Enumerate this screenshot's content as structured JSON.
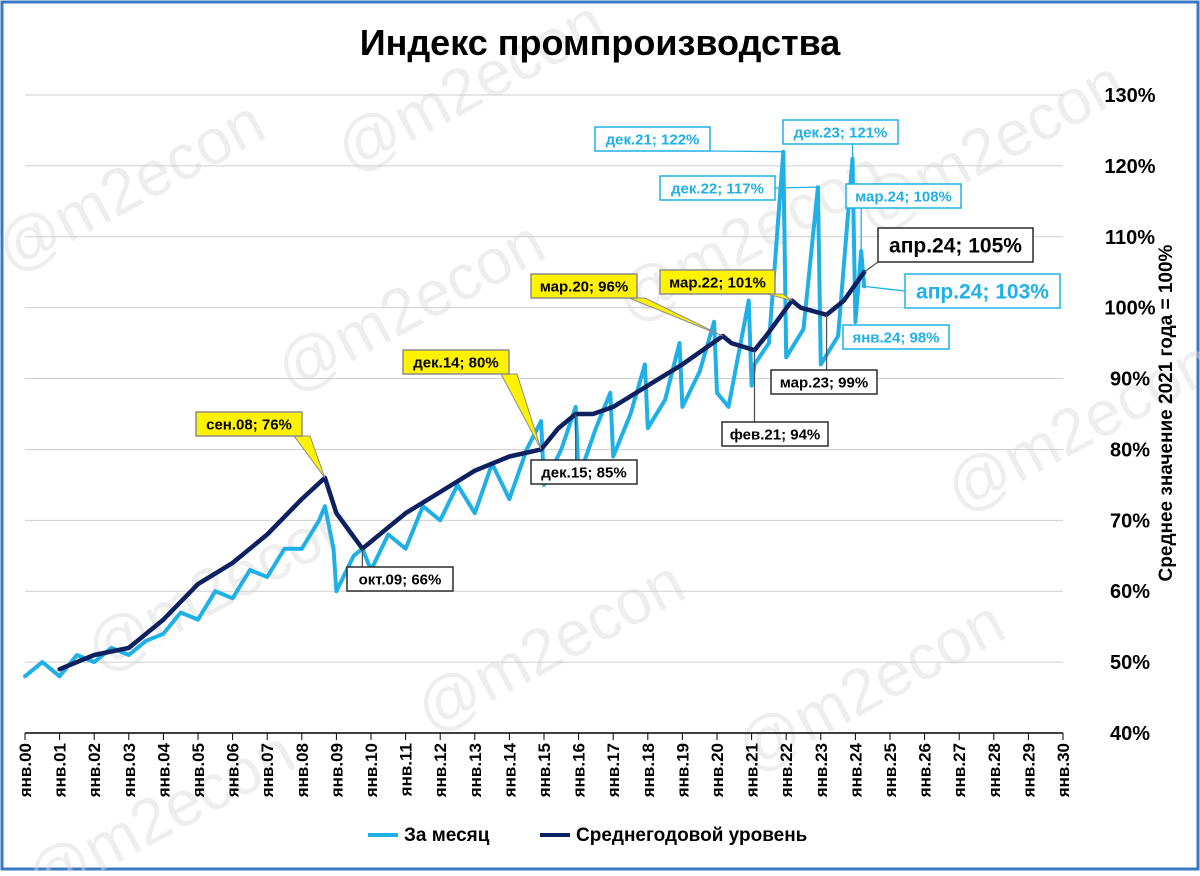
{
  "chart_data": {
    "type": "line",
    "title": "Индекс промпроизводства",
    "ylabel": "Среднее значение 2021 года = 100%",
    "y_axis_position": "right",
    "ylim": [
      40,
      130
    ],
    "y_ticks": [
      "40%",
      "50%",
      "60%",
      "70%",
      "80%",
      "90%",
      "100%",
      "110%",
      "120%",
      "130%"
    ],
    "x_range": [
      "2000-01",
      "2030-01"
    ],
    "x_tick_labels": [
      "янв.00",
      "янв.01",
      "янв.02",
      "янв.03",
      "янв.04",
      "янв.05",
      "янв.06",
      "янв.07",
      "янв.08",
      "янв.09",
      "янв.10",
      "янв.11",
      "янв.12",
      "янв.13",
      "янв.14",
      "янв.15",
      "янв.16",
      "янв.17",
      "янв.18",
      "янв.19",
      "янв.20",
      "янв.21",
      "янв.22",
      "янв.23",
      "янв.24",
      "янв.25",
      "янв.26",
      "янв.27",
      "янв.28",
      "янв.29",
      "янв.30"
    ],
    "grid": true,
    "legend_position": "bottom",
    "colors": {
      "monthly": "#1fb0e8",
      "annual": "#0d2160",
      "highlight_fill": "#fff200",
      "watermark": "#d9d9d9"
    },
    "watermark_text": "@m2econ",
    "series": [
      {
        "name": "За месяц",
        "style": "monthly",
        "x": [
          "2000-01",
          "2000-07",
          "2001-01",
          "2001-07",
          "2002-01",
          "2002-07",
          "2003-01",
          "2003-07",
          "2004-01",
          "2004-07",
          "2005-01",
          "2005-07",
          "2006-01",
          "2006-07",
          "2007-01",
          "2007-07",
          "2008-01",
          "2008-07",
          "2008-09",
          "2008-12",
          "2009-01",
          "2009-07",
          "2009-10",
          "2010-01",
          "2010-07",
          "2011-01",
          "2011-07",
          "2012-01",
          "2012-07",
          "2013-01",
          "2013-07",
          "2014-01",
          "2014-07",
          "2014-12",
          "2015-01",
          "2015-07",
          "2015-12",
          "2016-01",
          "2016-07",
          "2016-12",
          "2017-01",
          "2017-07",
          "2017-12",
          "2018-01",
          "2018-07",
          "2018-12",
          "2019-01",
          "2019-07",
          "2019-12",
          "2020-01",
          "2020-05",
          "2020-12",
          "2021-01",
          "2021-02",
          "2021-07",
          "2021-12",
          "2022-01",
          "2022-07",
          "2022-12",
          "2023-01",
          "2023-07",
          "2023-12",
          "2024-01",
          "2024-03",
          "2024-04"
        ],
        "y": [
          48,
          50,
          48,
          51,
          50,
          52,
          51,
          53,
          54,
          57,
          56,
          60,
          59,
          63,
          62,
          66,
          66,
          70,
          72,
          66,
          60,
          65,
          66,
          63,
          68,
          66,
          72,
          70,
          75,
          71,
          78,
          73,
          80,
          84,
          75,
          80,
          86,
          76,
          83,
          88,
          79,
          85,
          92,
          83,
          87,
          95,
          86,
          91,
          98,
          88,
          86,
          101,
          89,
          92,
          95,
          122,
          93,
          97,
          117,
          92,
          96,
          121,
          98,
          108,
          103
        ]
      },
      {
        "name": "Среднегодовой уровень",
        "style": "annual",
        "x": [
          "2001-01",
          "2002-01",
          "2003-01",
          "2004-01",
          "2005-01",
          "2006-01",
          "2007-01",
          "2008-01",
          "2008-09",
          "2009-01",
          "2009-10",
          "2010-01",
          "2011-01",
          "2012-01",
          "2013-01",
          "2014-01",
          "2014-12",
          "2015-06",
          "2015-12",
          "2016-06",
          "2017-01",
          "2018-01",
          "2019-01",
          "2020-03",
          "2020-06",
          "2021-02",
          "2021-06",
          "2022-03",
          "2022-06",
          "2023-03",
          "2023-09",
          "2024-04"
        ],
        "y": [
          49,
          51,
          52,
          56,
          61,
          64,
          68,
          73,
          76,
          71,
          66,
          67,
          71,
          74,
          77,
          79,
          80,
          83,
          85,
          85,
          86,
          89,
          92,
          96,
          95,
          94,
          96,
          101,
          100,
          99,
          101,
          105
        ]
      }
    ],
    "annotations": [
      {
        "text": "сен.08; 76%",
        "x": "2008-09",
        "y": 76,
        "style": "highlight"
      },
      {
        "text": "окт.09; 66%",
        "x": "2009-10",
        "y": 66,
        "style": "annual"
      },
      {
        "text": "дек.14; 80%",
        "x": "2014-12",
        "y": 80,
        "style": "highlight"
      },
      {
        "text": "дек.15; 85%",
        "x": "2015-12",
        "y": 85,
        "style": "annual"
      },
      {
        "text": "мар.20; 96%",
        "x": "2020-03",
        "y": 96,
        "style": "highlight"
      },
      {
        "text": "фев.21; 94%",
        "x": "2021-02",
        "y": 94,
        "style": "annual"
      },
      {
        "text": "мар.22; 101%",
        "x": "2022-03",
        "y": 101,
        "style": "highlight"
      },
      {
        "text": "мар.23; 99%",
        "x": "2023-03",
        "y": 99,
        "style": "annual"
      },
      {
        "text": "апр.24; 105%",
        "x": "2024-04",
        "y": 105,
        "style": "annual-big"
      },
      {
        "text": "дек.21; 122%",
        "x": "2021-12",
        "y": 122,
        "style": "monthly"
      },
      {
        "text": "дек.22; 117%",
        "x": "2022-12",
        "y": 117,
        "style": "monthly"
      },
      {
        "text": "дек.23; 121%",
        "x": "2023-12",
        "y": 121,
        "style": "monthly"
      },
      {
        "text": "мар.24; 108%",
        "x": "2024-03",
        "y": 108,
        "style": "monthly"
      },
      {
        "text": "апр.24; 103%",
        "x": "2024-04",
        "y": 103,
        "style": "monthly-big"
      },
      {
        "text": "янв.24; 98%",
        "x": "2024-01",
        "y": 98,
        "style": "monthly"
      }
    ]
  }
}
